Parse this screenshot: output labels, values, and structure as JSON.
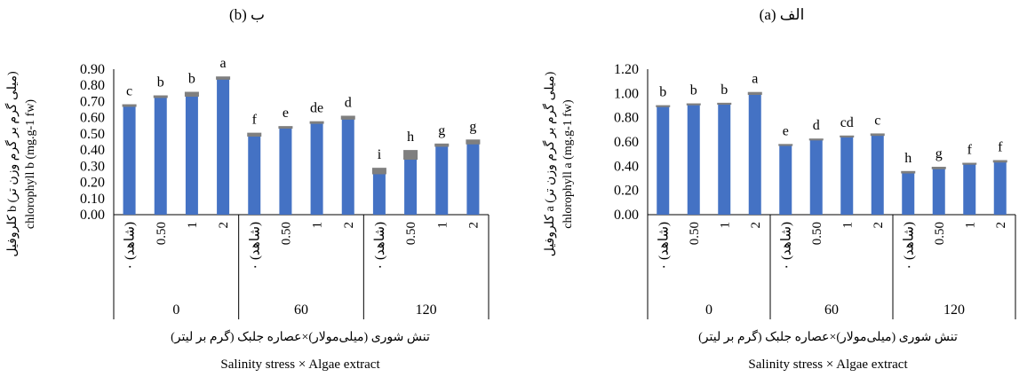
{
  "chart_data": [
    {
      "type": "bar",
      "title": "ب (b)",
      "ylabel_fa": "کلروفیل b (میلی گرم بر گرم وزن تر)",
      "ylabel_en": "chlorophyll b (mg.g-1 fw)",
      "xlabel_fa": "تنش شوری (میلی‌مولار)×عصاره جلبک (گرم بر لیتر)",
      "xlabel_en": "Salinity stress × Algae extract",
      "ylim": [
        0,
        0.9
      ],
      "ytick_labels": [
        "0.00",
        "0.10",
        "0.20",
        "0.30",
        "0.40",
        "0.50",
        "0.60",
        "0.70",
        "0.80",
        "0.90"
      ],
      "groups": [
        "0",
        "60",
        "120"
      ],
      "categories": [
        "۰ (شاهد)",
        "0.50",
        "1",
        "2",
        "۰ (شاهد)",
        "0.50",
        "1",
        "2",
        "۰ (شاهد)",
        "0.50",
        "1",
        "2"
      ],
      "values": [
        0.675,
        0.73,
        0.745,
        0.845,
        0.495,
        0.54,
        0.57,
        0.6,
        0.27,
        0.37,
        0.43,
        0.45
      ],
      "errors": [
        0.008,
        0.008,
        0.015,
        0.01,
        0.012,
        0.008,
        0.008,
        0.012,
        0.02,
        0.03,
        0.01,
        0.015
      ],
      "letters": [
        "c",
        "b",
        "b",
        "a",
        "f",
        "e",
        "de",
        "d",
        "i",
        "h",
        "g",
        "g"
      ],
      "grid": false,
      "bar_color": "#4472c4"
    },
    {
      "type": "bar",
      "title": "الف (a)",
      "ylabel_fa": "کلروفیل a (میلی گرم بر گرم وزن تر)",
      "ylabel_en": "chlorophyll a (mg.g-1 fw)",
      "xlabel_fa": "تنش شوری (میلی‌مولار)×عصاره جلبک (گرم بر لیتر)",
      "xlabel_en": "Salinity stress × Algae extract",
      "ylim": [
        0,
        1.2
      ],
      "ytick_labels": [
        "0.00",
        "0.20",
        "0.40",
        "0.60",
        "0.80",
        "1.00",
        "1.20"
      ],
      "groups": [
        "0",
        "60",
        "120"
      ],
      "categories": [
        "۰ (شاهد)",
        "0.50",
        "1",
        "2",
        "۰ (شاهد)",
        "0.50",
        "1",
        "2",
        "۰ (شاهد)",
        "0.50",
        "1",
        "2"
      ],
      "values": [
        0.895,
        0.91,
        0.915,
        1.0,
        0.575,
        0.62,
        0.645,
        0.66,
        0.35,
        0.385,
        0.42,
        0.44
      ],
      "errors": [
        0.008,
        0.008,
        0.008,
        0.012,
        0.008,
        0.008,
        0.008,
        0.01,
        0.01,
        0.01,
        0.008,
        0.01
      ],
      "letters": [
        "b",
        "b",
        "b",
        "a",
        "e",
        "d",
        "cd",
        "c",
        "h",
        "g",
        "f",
        "f"
      ],
      "grid": false,
      "bar_color": "#4472c4"
    }
  ]
}
